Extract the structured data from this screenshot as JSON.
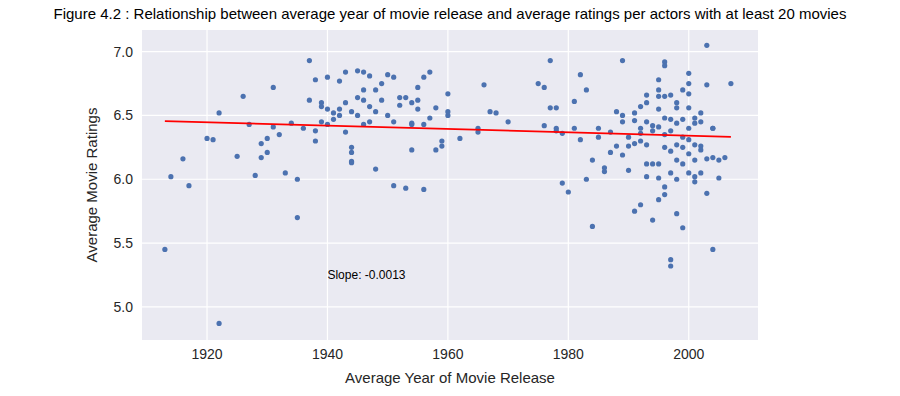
{
  "chart_data": {
    "type": "scatter",
    "title": "Figure 4.2 : Relationship between average year of movie release and average ratings per actors with at least 20 movies",
    "x_label": "Average Year of Movie Release",
    "y_label": "Average Movie Ratings",
    "xlim": [
      1909.2,
      2011.5
    ],
    "ylim": [
      4.74,
      7.17
    ],
    "xticks": [
      1920,
      1940,
      1960,
      1980,
      2000
    ],
    "yticks": [
      {
        "value": 5,
        "label": "5.0"
      },
      {
        "value": 5.5,
        "label": "5.5"
      },
      {
        "value": 6,
        "label": "6.0"
      },
      {
        "value": 6.5,
        "label": "6.5"
      },
      {
        "value": 7,
        "label": "7.0"
      }
    ],
    "grid": true,
    "annotations": [
      {
        "text": "Slope: -0.0013",
        "x": 1940,
        "y": 5.25
      }
    ],
    "series": [
      {
        "type": "scatter",
        "color": "#4c72b0",
        "marker": "circle",
        "x": [
          1913,
          1914,
          1916,
          1917,
          1920,
          1921,
          1922,
          1922,
          1925,
          1926,
          1927,
          1928,
          1929,
          1929,
          1930,
          1930,
          1931,
          1931,
          1932,
          1933,
          1934,
          1935,
          1935,
          1936,
          1937,
          1937,
          1938,
          1938,
          1938,
          1939,
          1939,
          1939,
          1940,
          1940,
          1940,
          1941,
          1941,
          1942,
          1942,
          1942,
          1943,
          1943,
          1943,
          1944,
          1944,
          1944,
          1944,
          1944,
          1945,
          1945,
          1945,
          1946,
          1946,
          1946,
          1946,
          1947,
          1947,
          1947,
          1948,
          1948,
          1948,
          1949,
          1949,
          1950,
          1950,
          1951,
          1951,
          1951,
          1952,
          1952,
          1953,
          1953,
          1954,
          1954,
          1954,
          1954,
          1955,
          1955,
          1955,
          1956,
          1956,
          1956,
          1957,
          1957,
          1958,
          1958,
          1959,
          1959,
          1960,
          1960,
          1960,
          1962,
          1965,
          1965,
          1966,
          1967,
          1968,
          1970,
          1975,
          1976,
          1976,
          1977,
          1977,
          1978,
          1978,
          1978,
          1979,
          1979,
          1980,
          1981,
          1981,
          1982,
          1982,
          1983,
          1983,
          1984,
          1984,
          1985,
          1985,
          1986,
          1986,
          1987,
          1987,
          1988,
          1988,
          1989,
          1989,
          1989,
          1989,
          1990,
          1990,
          1990,
          1991,
          1991,
          1991,
          1991,
          1992,
          1992,
          1992,
          1992,
          1992,
          1993,
          1993,
          1993,
          1993,
          1993,
          1993,
          1994,
          1994,
          1994,
          1994,
          1995,
          1995,
          1995,
          1995,
          1995,
          1995,
          1995,
          1995,
          1996,
          1996,
          1996,
          1996,
          1996,
          1996,
          1996,
          1996,
          1997,
          1997,
          1997,
          1997,
          1997,
          1997,
          1997,
          1998,
          1998,
          1998,
          1998,
          1998,
          1998,
          1998,
          1999,
          1999,
          1999,
          1999,
          1999,
          1999,
          2000,
          2000,
          2000,
          2000,
          2000,
          2000,
          2000,
          2000,
          2001,
          2001,
          2001,
          2001,
          2001,
          2001,
          2002,
          2002,
          2002,
          2002,
          2002,
          2003,
          2003,
          2003,
          2003,
          2004,
          2004,
          2004,
          2004,
          2005,
          2005,
          2006,
          2007
        ],
        "values": [
          5.45,
          6.02,
          6.16,
          5.95,
          6.32,
          6.31,
          6.52,
          4.87,
          6.18,
          6.65,
          6.43,
          6.03,
          6.28,
          6.17,
          6.32,
          6.21,
          6.72,
          6.41,
          6.35,
          6.05,
          6.44,
          6.0,
          5.7,
          6.4,
          6.93,
          6.62,
          6.78,
          6.38,
          6.3,
          6.45,
          6.6,
          6.57,
          6.55,
          6.43,
          6.8,
          6.52,
          6.47,
          6.5,
          6.55,
          6.77,
          6.6,
          6.37,
          6.84,
          6.25,
          6.21,
          6.14,
          6.13,
          6.53,
          6.64,
          6.85,
          6.5,
          6.62,
          6.43,
          6.7,
          6.84,
          6.57,
          6.81,
          6.45,
          6.08,
          6.7,
          6.53,
          6.62,
          6.75,
          6.5,
          6.82,
          5.95,
          6.8,
          6.45,
          6.64,
          6.58,
          5.93,
          6.64,
          6.44,
          6.43,
          6.23,
          6.6,
          6.55,
          6.72,
          6.62,
          6.8,
          6.43,
          5.92,
          6.84,
          6.48,
          6.56,
          6.23,
          6.3,
          6.26,
          6.5,
          6.53,
          6.67,
          6.32,
          6.37,
          6.4,
          6.74,
          6.53,
          6.52,
          6.45,
          6.75,
          6.42,
          6.72,
          6.56,
          6.93,
          6.56,
          6.38,
          6.4,
          5.97,
          6.36,
          5.9,
          6.61,
          6.4,
          6.31,
          6.82,
          6.0,
          6.7,
          6.15,
          5.63,
          6.4,
          6.33,
          6.09,
          6.06,
          6.37,
          6.21,
          6.53,
          6.26,
          6.5,
          6.19,
          6.93,
          6.45,
          6.26,
          6.07,
          6.33,
          6.52,
          6.46,
          5.75,
          6.28,
          6.57,
          6.4,
          6.36,
          5.8,
          6.3,
          6.66,
          6.6,
          6.45,
          6.27,
          6.12,
          6.02,
          6.38,
          6.12,
          5.68,
          6.42,
          6.65,
          6.7,
          6.55,
          6.41,
          6.12,
          6.01,
          5.84,
          6.78,
          6.92,
          6.65,
          6.48,
          6.35,
          6.25,
          5.88,
          6.89,
          5.94,
          6.66,
          6.47,
          6.38,
          6.22,
          5.37,
          5.32,
          6.05,
          6.56,
          6.44,
          6.27,
          6.15,
          6.0,
          5.73,
          6.6,
          6.47,
          6.33,
          6.25,
          6.12,
          5.62,
          6.7,
          6.83,
          6.75,
          6.56,
          6.4,
          6.31,
          6.2,
          6.05,
          6.67,
          6.48,
          6.44,
          6.27,
          6.02,
          5.98,
          6.15,
          6.52,
          6.45,
          6.26,
          6.23,
          6.05,
          6.16,
          5.89,
          7.05,
          6.74,
          6.4,
          6.17,
          5.45,
          6.4,
          6.15,
          6.01,
          6.17,
          6.75
        ]
      },
      {
        "type": "line",
        "color": "red",
        "line_style": "solid",
        "x": [
          1913,
          2007
        ],
        "values": [
          6.455,
          6.333
        ]
      }
    ]
  }
}
